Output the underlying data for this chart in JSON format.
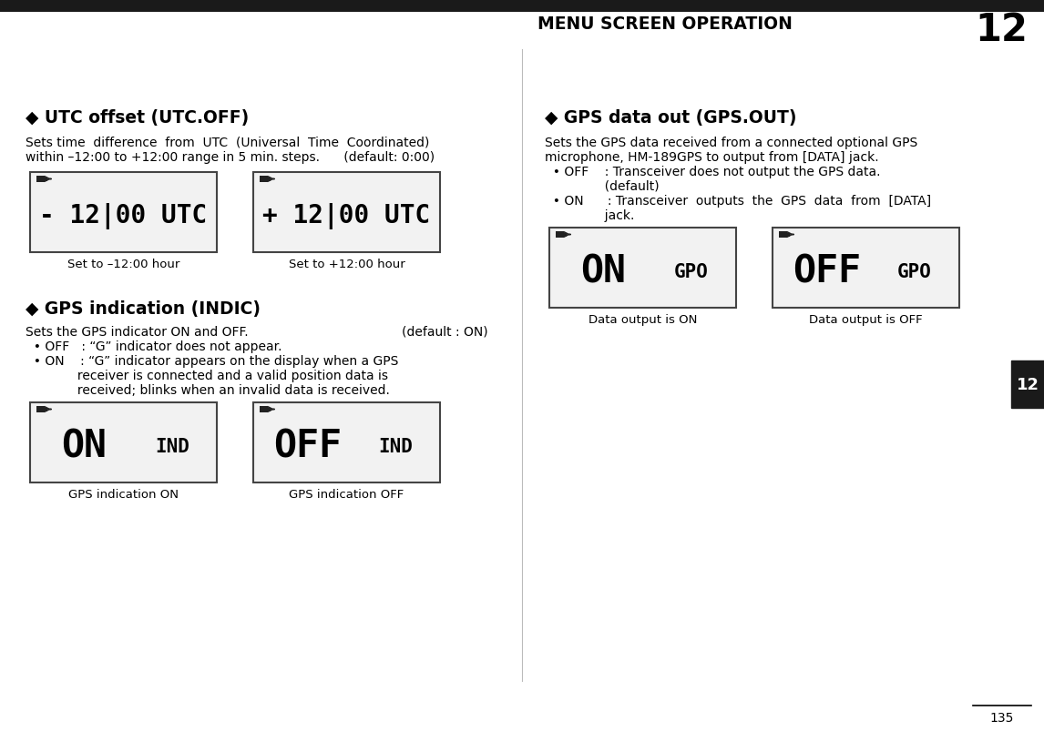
{
  "bg_color": "#ffffff",
  "page_num": "12",
  "page_footer": "135",
  "header_text": "MENU SCREEN OPERATION",
  "top_bar_color": "#1a1a1a",
  "sidebar_color": "#1a1a1a",
  "sidebar_label": "12",
  "s1_title": "◆ UTC offset (UTC.OFF)",
  "s1_body": [
    "Sets time  difference  from  UTC  (Universal  Time  Coordinated)",
    "within –12:00 to +12:00 range in 5 min. steps.      (default: 0:00)"
  ],
  "s1_scr1_main": "- 12|00 UTC",
  "s1_scr1_label": "Set to –12:00 hour",
  "s1_scr2_main": "+ 12|00 UTC",
  "s1_scr2_label": "Set to +12:00 hour",
  "s2_title": "◆ GPS indication (INDIC)",
  "s2_body": "Sets the GPS indicator ON and OFF.",
  "s2_body_right": "(default : ON)",
  "s2_b1": "  • OFF   : “G” indicator does not appear.",
  "s2_b2a": "  • ON    : “G” indicator appears on the display when a GPS",
  "s2_b2b": "             receiver is connected and a valid position data is",
  "s2_b2c": "             received; blinks when an invalid data is received.",
  "s2_scr1_main": "ON",
  "s2_scr1_sub": "IND",
  "s2_scr1_label": "GPS indication ON",
  "s2_scr2_main": "OFF",
  "s2_scr2_sub": "IND",
  "s2_scr2_label": "GPS indication OFF",
  "s3_title": "◆ GPS data out (GPS.OUT)",
  "s3_body": [
    "Sets the GPS data received from a connected optional GPS",
    "microphone, HM-189GPS to output from [DATA] jack."
  ],
  "s3_b1a": "  • OFF    : Transceiver does not output the GPS data.",
  "s3_b1b": "               (default)",
  "s3_b2a": "  • ON      : Transceiver  outputs  the  GPS  data  from  [DATA]",
  "s3_b2b": "               jack.",
  "s3_scr1_main": "ON",
  "s3_scr1_sub": "GPO",
  "s3_scr1_label": "Data output is ON",
  "s3_scr2_main": "OFF",
  "s3_scr2_sub": "GPO",
  "s3_scr2_label": "Data output is OFF"
}
